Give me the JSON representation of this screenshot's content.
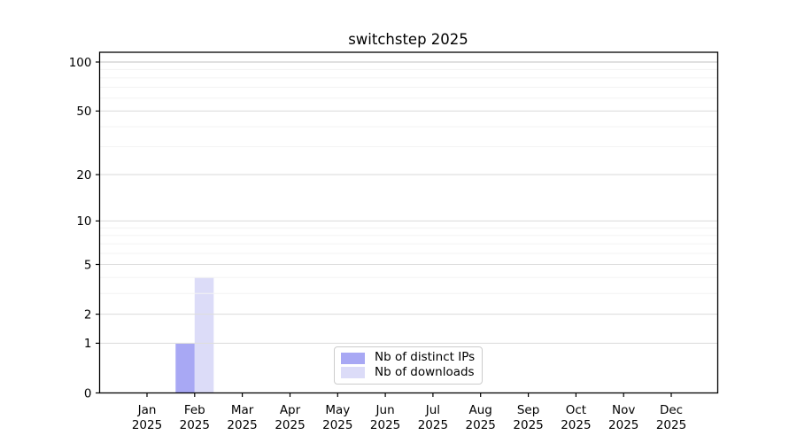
{
  "chart_data": {
    "type": "bar",
    "title": "switchstep 2025",
    "categories": [
      "Jan",
      "Feb",
      "Mar",
      "Apr",
      "May",
      "Jun",
      "Jul",
      "Aug",
      "Sep",
      "Oct",
      "Nov",
      "Dec"
    ],
    "year_label": "2025",
    "series": [
      {
        "name": "Nb of distinct IPs",
        "color": "#a8a8f4",
        "values": [
          0,
          1,
          0,
          0,
          0,
          0,
          0,
          0,
          0,
          0,
          0,
          0
        ]
      },
      {
        "name": "Nb of downloads",
        "color": "#dcdcf8",
        "values": [
          0,
          4,
          0,
          0,
          0,
          0,
          0,
          0,
          0,
          0,
          0,
          0
        ]
      }
    ],
    "yscale": "log1p",
    "ylim": [
      0,
      115
    ],
    "yticks": [
      0,
      1,
      2,
      5,
      10,
      20,
      50,
      100
    ],
    "minor_gridlines": [
      3,
      4,
      6,
      7,
      8,
      9,
      30,
      40,
      60,
      70,
      80,
      90
    ],
    "grid": "on",
    "legend_position": "lower center",
    "colors": {
      "axis": "#000000",
      "text": "#000000",
      "major_grid": "#dedede",
      "minor_grid": "#f3f3f3",
      "top_grid": "#c2c2c2",
      "legend_border": "#cccccc",
      "background": "#ffffff"
    }
  }
}
